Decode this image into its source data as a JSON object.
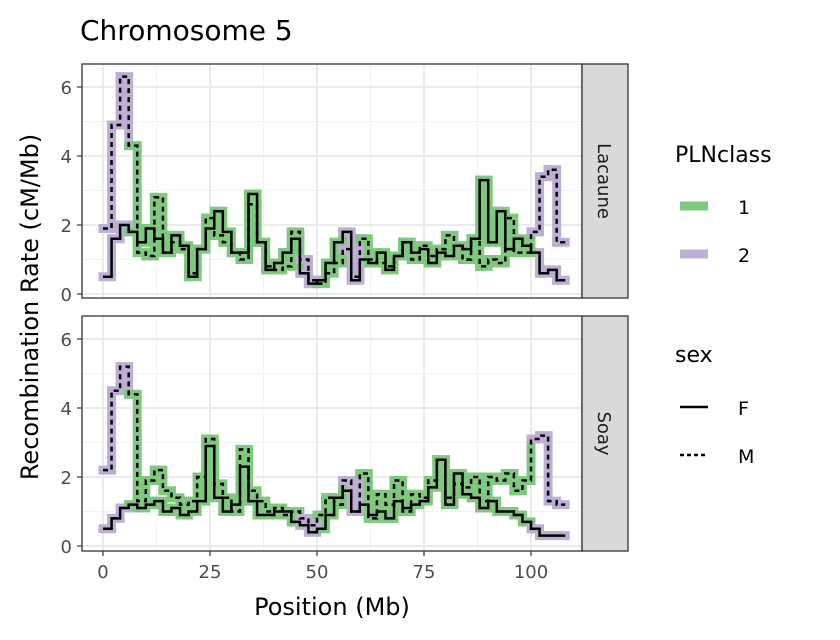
{
  "chart_data": {
    "type": "line",
    "title": "Chromosome 5",
    "xlabel": "Position (Mb)",
    "ylabel": "Recombination Rate (cM/Mb)",
    "xlim": [
      -4,
      111
    ],
    "ylim": [
      -0.15,
      6.6
    ],
    "xticks": [
      "0",
      "25",
      "50",
      "75",
      "100"
    ],
    "yticks": [
      "0",
      "2",
      "4",
      "6"
    ],
    "x_step": 2,
    "colors": {
      "1": "#7fc97f",
      "2": "#beaed4"
    },
    "class_by_bin": [
      2,
      2,
      2,
      1,
      1,
      1,
      1,
      1,
      1,
      1,
      1,
      1,
      1,
      1,
      1,
      1,
      1,
      1,
      1,
      1,
      1,
      1,
      1,
      2,
      2,
      1,
      1,
      1,
      2,
      2,
      1,
      1,
      1,
      1,
      1,
      1,
      1,
      1,
      1,
      1,
      1,
      1,
      1,
      1,
      1,
      1,
      1,
      1,
      1,
      1,
      2,
      2,
      2,
      2
    ],
    "panels": [
      {
        "name": "Lacaune",
        "series": [
          {
            "sex": "F",
            "values": [
              0.5,
              1.6,
              2.0,
              1.8,
              1.5,
              1.9,
              1.6,
              1.2,
              1.7,
              1.4,
              0.5,
              1.3,
              1.9,
              2.4,
              1.8,
              1.2,
              1.2,
              2.9,
              1.5,
              0.7,
              0.9,
              1.2,
              1.6,
              0.6,
              0.3,
              0.4,
              0.9,
              1.5,
              1.8,
              0.4,
              1.0,
              0.9,
              1.2,
              0.7,
              1.1,
              1.5,
              1.2,
              1.3,
              0.9,
              1.2,
              1.1,
              1.4,
              1.3,
              1.6,
              3.3,
              1.5,
              2.4,
              1.3,
              1.6,
              1.4,
              1.2,
              0.6,
              0.7,
              0.4
            ]
          },
          {
            "sex": "M",
            "values": [
              1.9,
              4.9,
              6.3,
              4.3,
              1.2,
              1.1,
              2.8,
              1.2,
              1.5,
              1.3,
              0.6,
              1.3,
              2.2,
              1.7,
              1.5,
              1.2,
              1.0,
              2.6,
              1.5,
              0.8,
              0.7,
              0.8,
              1.8,
              1.0,
              0.4,
              0.3,
              0.6,
              0.9,
              1.3,
              0.5,
              1.6,
              1.0,
              0.9,
              0.8,
              1.1,
              1.5,
              1.0,
              1.4,
              1.1,
              1.3,
              1.7,
              1.4,
              1.0,
              1.6,
              0.8,
              1.0,
              0.9,
              2.2,
              1.2,
              1.2,
              1.8,
              3.4,
              3.6,
              1.5
            ]
          }
        ]
      },
      {
        "name": "Soay",
        "series": [
          {
            "sex": "F",
            "values": [
              0.5,
              0.8,
              1.1,
              1.2,
              1.1,
              1.2,
              1.3,
              1.0,
              1.1,
              0.9,
              1.0,
              1.3,
              2.9,
              1.4,
              1.0,
              1.2,
              2.3,
              1.3,
              0.9,
              0.9,
              1.0,
              1.0,
              0.7,
              0.6,
              0.4,
              0.5,
              0.9,
              1.4,
              1.6,
              1.0,
              1.2,
              0.9,
              1.0,
              0.8,
              1.3,
              1.1,
              1.2,
              1.3,
              1.7,
              2.5,
              1.2,
              2.1,
              1.5,
              1.4,
              1.1,
              1.3,
              1.0,
              1.0,
              0.9,
              0.7,
              0.5,
              0.3,
              0.3,
              0.3
            ]
          },
          {
            "sex": "M",
            "values": [
              2.2,
              4.5,
              5.2,
              4.4,
              1.3,
              1.9,
              2.2,
              1.6,
              1.4,
              1.2,
              1.3,
              2.0,
              3.1,
              1.8,
              1.4,
              1.0,
              2.8,
              1.6,
              1.3,
              1.0,
              1.1,
              0.9,
              1.0,
              0.8,
              0.6,
              0.9,
              1.4,
              1.2,
              1.9,
              1.0,
              2.1,
              0.8,
              1.5,
              1.2,
              1.9,
              1.0,
              1.5,
              1.4,
              1.9,
              2.5,
              1.4,
              1.8,
              1.7,
              2.0,
              1.3,
              2.0,
              1.9,
              2.1,
              1.6,
              1.9,
              3.1,
              3.2,
              1.3,
              1.2
            ]
          }
        ]
      }
    ],
    "legend": {
      "placement": "right",
      "plnclass": {
        "title": "PLNclass",
        "items": [
          "1",
          "2"
        ]
      },
      "sex": {
        "title": "sex",
        "items": [
          "F",
          "M"
        ]
      }
    }
  }
}
